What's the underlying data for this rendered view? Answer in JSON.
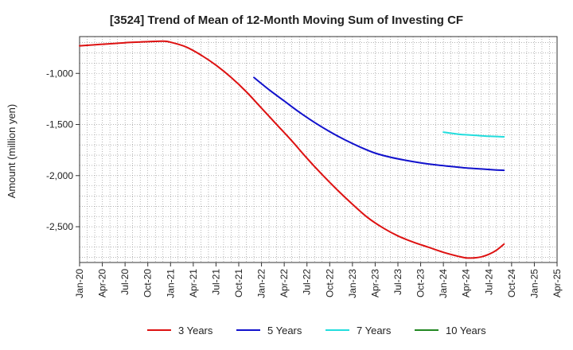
{
  "chart_data": {
    "type": "line",
    "title": "[3524]  Trend of Mean of 12-Month Moving Sum of Investing CF",
    "ylabel": "Amount (million yen)",
    "xlabel": "",
    "ylim": [
      -2850,
      -640
    ],
    "yticks": [
      -1000,
      -1500,
      -2000,
      -2500
    ],
    "ytick_labels": [
      "-1,000",
      "-1,500",
      "-2,000",
      "-2,500"
    ],
    "x_range_months": [
      0,
      63
    ],
    "xtick_labels": [
      "Jan-20",
      "Apr-20",
      "Jul-20",
      "Oct-20",
      "Jan-21",
      "Apr-21",
      "Jul-21",
      "Oct-21",
      "Jan-22",
      "Apr-22",
      "Jul-22",
      "Oct-22",
      "Jan-23",
      "Apr-23",
      "Jul-23",
      "Oct-23",
      "Jan-24",
      "Apr-24",
      "Jul-24",
      "Oct-24",
      "Jan-25",
      "Apr-25"
    ],
    "grid": true,
    "legend_position": "bottom",
    "series": [
      {
        "name": "3 Years",
        "color": "#dd1111",
        "points": [
          [
            0,
            -730
          ],
          [
            3,
            -715
          ],
          [
            6,
            -700
          ],
          [
            9,
            -690
          ],
          [
            11,
            -685
          ],
          [
            12,
            -695
          ],
          [
            14,
            -740
          ],
          [
            16,
            -820
          ],
          [
            18,
            -920
          ],
          [
            20,
            -1040
          ],
          [
            22,
            -1180
          ],
          [
            24,
            -1340
          ],
          [
            26,
            -1500
          ],
          [
            28,
            -1660
          ],
          [
            30,
            -1830
          ],
          [
            32,
            -1990
          ],
          [
            34,
            -2140
          ],
          [
            36,
            -2280
          ],
          [
            38,
            -2410
          ],
          [
            40,
            -2510
          ],
          [
            42,
            -2590
          ],
          [
            44,
            -2650
          ],
          [
            46,
            -2700
          ],
          [
            48,
            -2750
          ],
          [
            50,
            -2790
          ],
          [
            51,
            -2805
          ],
          [
            52,
            -2805
          ],
          [
            53,
            -2795
          ],
          [
            54,
            -2770
          ],
          [
            55,
            -2730
          ],
          [
            56,
            -2670
          ]
        ]
      },
      {
        "name": "5 Years",
        "color": "#1111cc",
        "points": [
          [
            23,
            -1040
          ],
          [
            25,
            -1160
          ],
          [
            27,
            -1270
          ],
          [
            29,
            -1380
          ],
          [
            31,
            -1480
          ],
          [
            33,
            -1570
          ],
          [
            35,
            -1650
          ],
          [
            37,
            -1720
          ],
          [
            39,
            -1780
          ],
          [
            41,
            -1820
          ],
          [
            43,
            -1850
          ],
          [
            45,
            -1875
          ],
          [
            47,
            -1895
          ],
          [
            49,
            -1910
          ],
          [
            51,
            -1925
          ],
          [
            53,
            -1935
          ],
          [
            55,
            -1945
          ],
          [
            56,
            -1948
          ]
        ]
      },
      {
        "name": "7 Years",
        "color": "#22dddd",
        "points": [
          [
            48,
            -1575
          ],
          [
            50,
            -1595
          ],
          [
            52,
            -1605
          ],
          [
            54,
            -1615
          ],
          [
            56,
            -1620
          ]
        ]
      },
      {
        "name": "10 Years",
        "color": "#228822",
        "points": []
      }
    ]
  }
}
